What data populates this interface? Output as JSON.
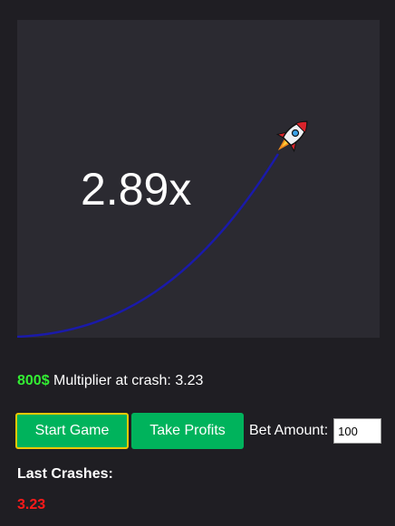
{
  "game": {
    "current_multiplier": "2.89x",
    "curve_color": "#1a1aaa",
    "rocket_icon": "rocket-icon"
  },
  "status": {
    "balance": "800$",
    "crash_label": "Multiplier at crash: 3.23",
    "balance_color": "#33ee33"
  },
  "controls": {
    "start_label": "Start Game",
    "take_label": "Take Profits",
    "bet_label": "Bet Amount:",
    "bet_value": "100",
    "button_color": "#00b35c",
    "focus_outline_color": "#f0c800"
  },
  "history": {
    "heading": "Last Crashes:",
    "items": [
      "3.23"
    ],
    "item_color": "#ff1a1a"
  }
}
